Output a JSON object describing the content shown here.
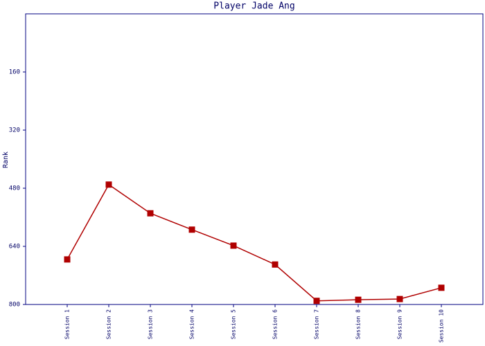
{
  "chart_data": {
    "type": "line",
    "title": "Player Jade Ang",
    "y_label": "Rank",
    "categories": [
      "Session 1",
      "Session 2",
      "Session 3",
      "Session 4",
      "Session 5",
      "Session 6",
      "Session 7",
      "Session 8",
      "Session 9",
      "Session 10"
    ],
    "series": [
      {
        "name": "Rank",
        "color": "#b00000",
        "values": [
          676,
          470,
          549,
          594,
          638,
          690,
          790,
          787,
          785,
          754
        ]
      }
    ],
    "ylim": [
      800,
      0
    ],
    "yticks": [
      800,
      640,
      480,
      320,
      160
    ],
    "axis_color": "#000080"
  }
}
